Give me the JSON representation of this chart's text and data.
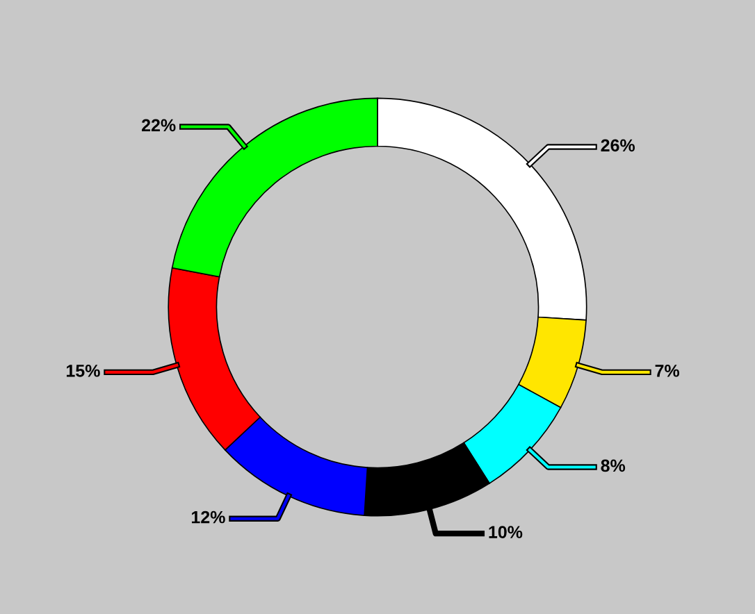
{
  "chart_data": {
    "type": "donut",
    "categories": [
      null,
      null,
      null,
      null,
      null,
      null,
      null
    ],
    "values": [
      26,
      7,
      8,
      10,
      12,
      15,
      22
    ],
    "colors": [
      "#ffffff",
      "#ffe600",
      "#00ffff",
      "#000000",
      "#0000ff",
      "#ff0000",
      "#00ff00"
    ],
    "value_labels": [
      "26%",
      "7%",
      "8%",
      "10%",
      "12%",
      "15%",
      "22%"
    ]
  }
}
